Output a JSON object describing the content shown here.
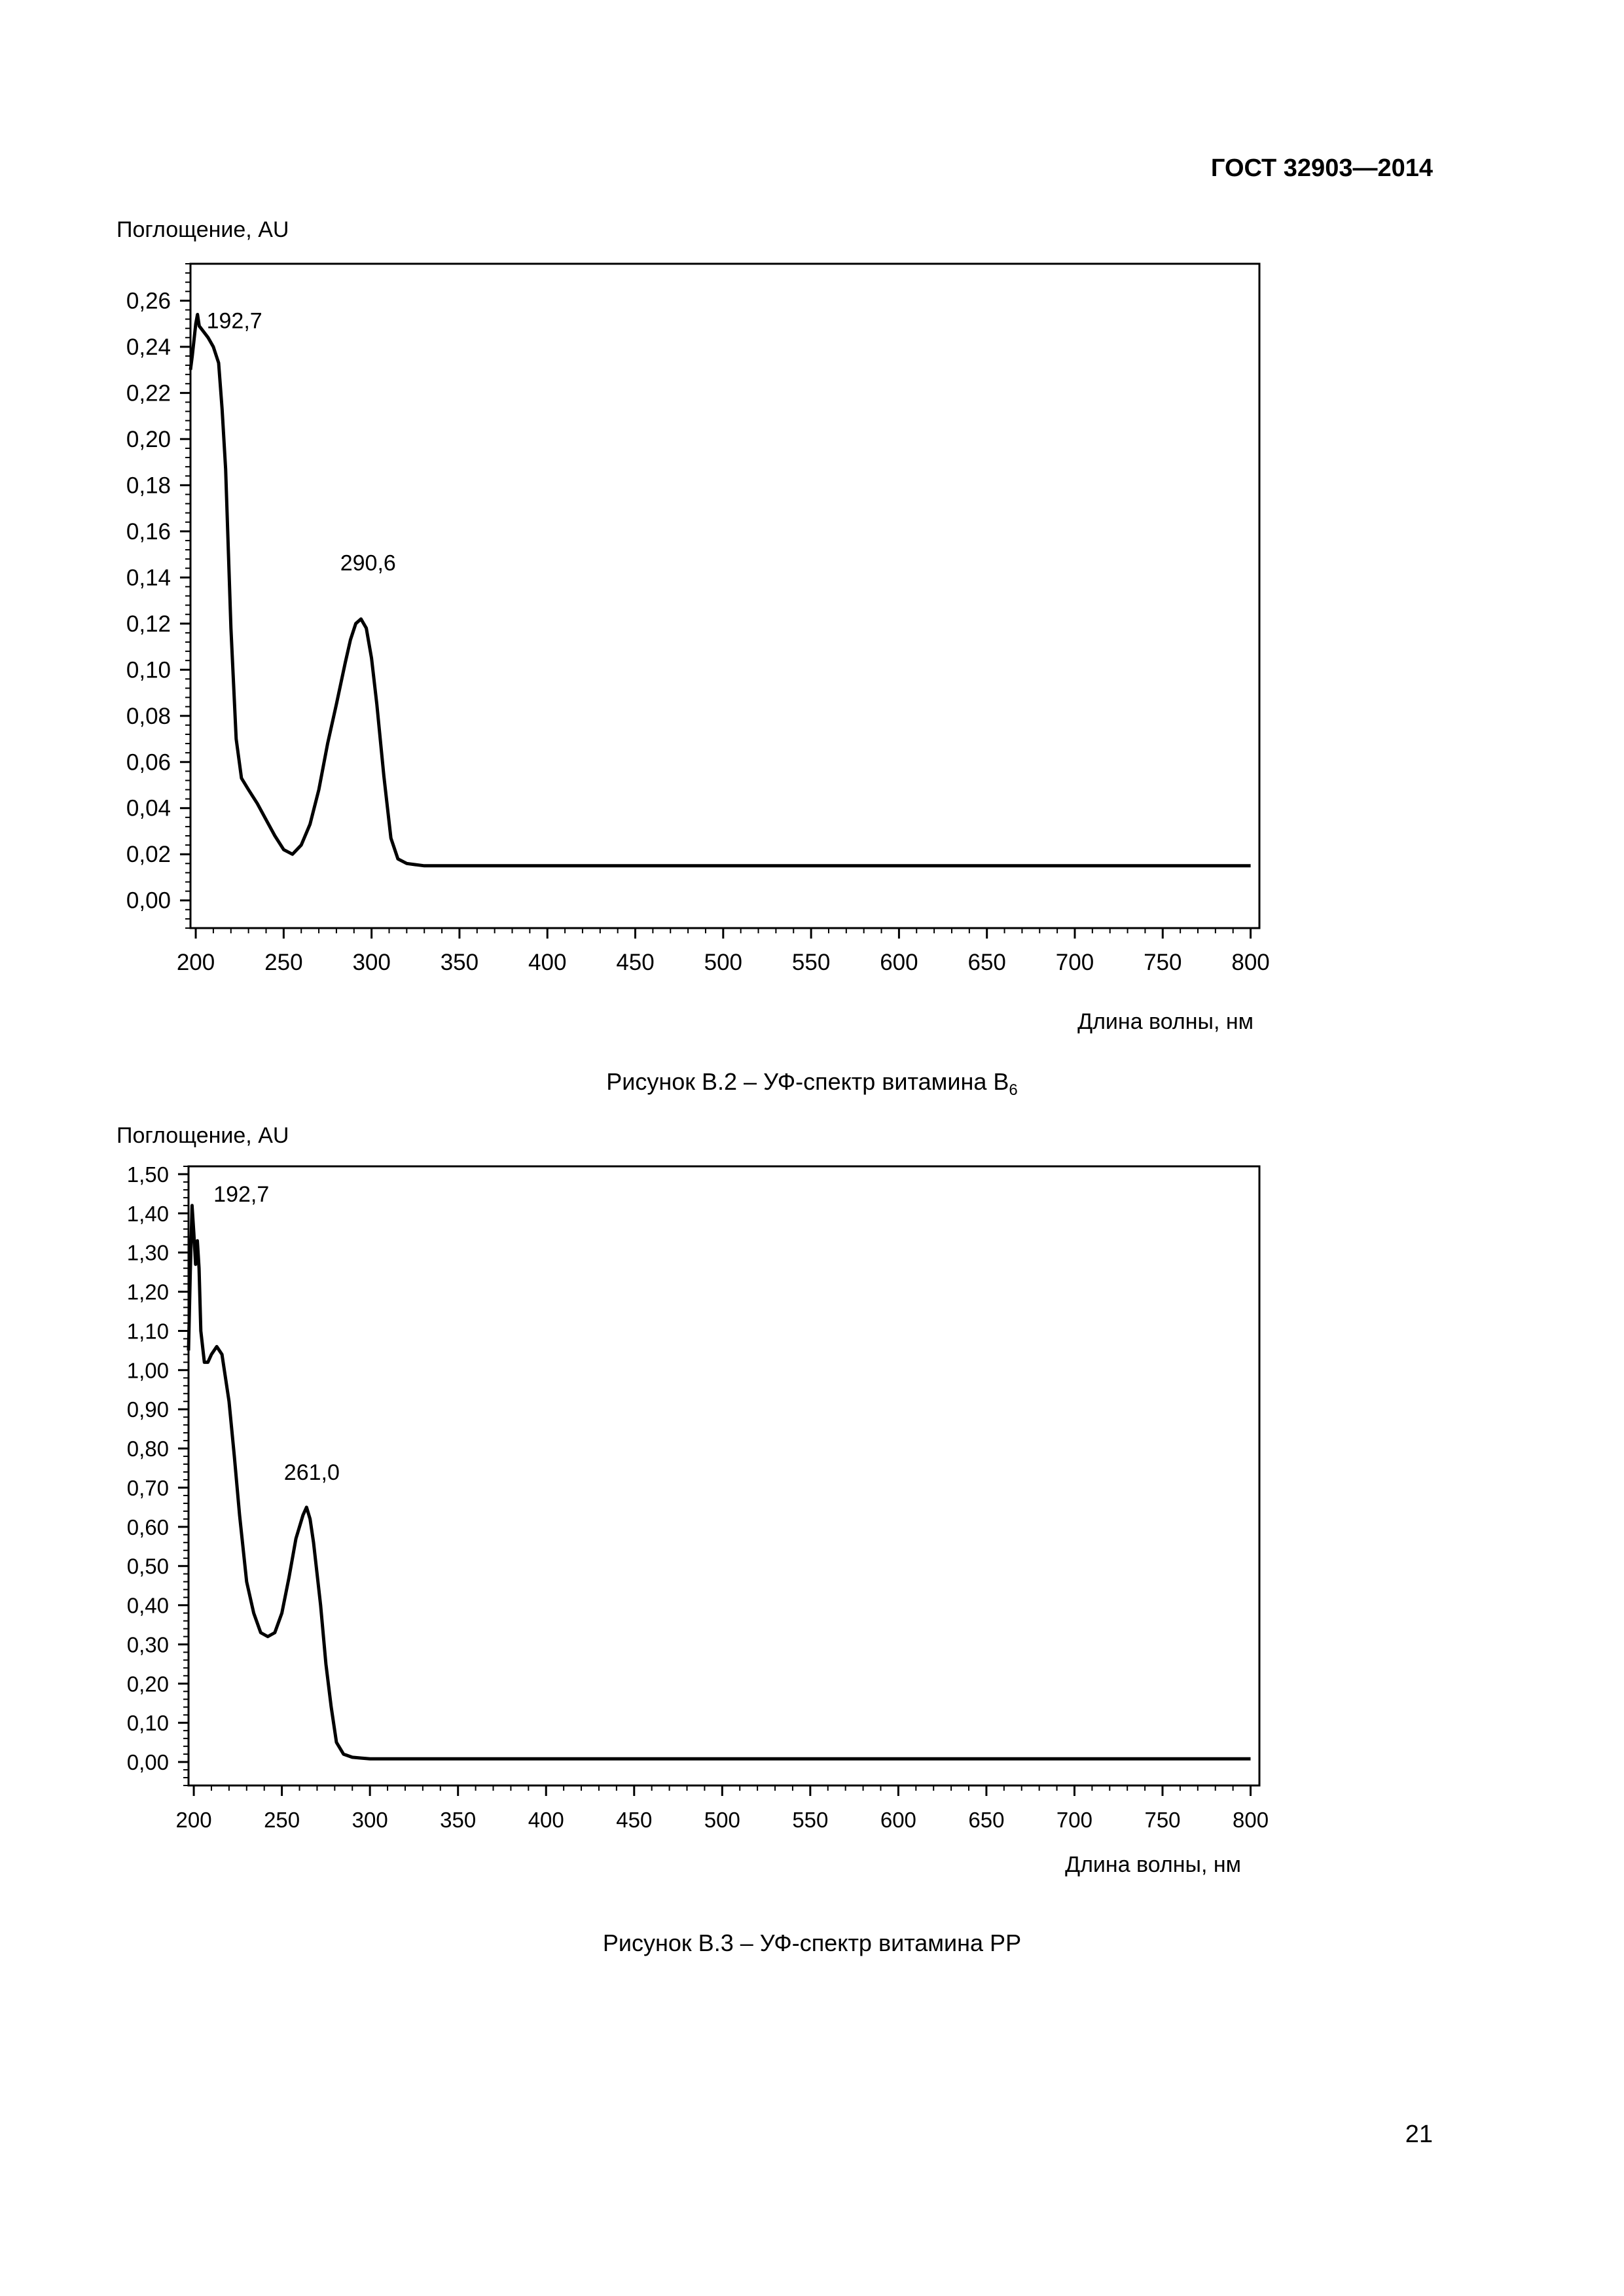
{
  "header": {
    "document_code": "ГОСТ 32903—2014"
  },
  "footer": {
    "page_number": "21"
  },
  "chart_data": [
    {
      "type": "line",
      "ylabel": "Поглощение, AU",
      "xlabel": "Длина волны, нм",
      "xlim": [
        197,
        805
      ],
      "ylim": [
        -0.012,
        0.276
      ],
      "x_ticks": [
        200,
        250,
        300,
        350,
        400,
        450,
        500,
        550,
        600,
        650,
        700,
        750,
        800
      ],
      "x_tick_labels": [
        "200",
        "250",
        "300",
        "350",
        "400",
        "450",
        "500",
        "550",
        "600",
        "650",
        "700",
        "750",
        "800"
      ],
      "y_ticks": [
        0,
        0.02,
        0.04,
        0.06,
        0.08,
        0.1,
        0.12,
        0.14,
        0.16,
        0.18,
        0.2,
        0.22,
        0.24,
        0.26
      ],
      "y_tick_labels": [
        "0,00",
        "0,02",
        "0,04",
        "0,06",
        "0,08",
        "0,10",
        "0,12",
        "0,14",
        "0,16",
        "0,18",
        "0,20",
        "0,22",
        "0,24",
        "0,26"
      ],
      "annotations": [
        {
          "text": "192,7",
          "x": 222,
          "y": 0.248
        },
        {
          "text": "290,6",
          "x": 298,
          "y": 0.143
        }
      ],
      "grid": false,
      "series": [
        {
          "x": [
            197,
            198,
            200,
            201,
            202,
            204,
            207,
            210,
            213,
            215,
            217,
            220,
            223,
            226,
            230,
            235,
            240,
            245,
            250,
            255,
            260,
            265,
            270,
            275,
            280,
            285,
            288,
            291,
            294,
            297,
            300,
            303,
            307,
            311,
            315,
            320,
            325,
            330,
            340,
            350,
            400,
            500,
            600,
            700,
            800
          ],
          "y": [
            0.23,
            0.236,
            0.25,
            0.254,
            0.249,
            0.247,
            0.244,
            0.24,
            0.233,
            0.213,
            0.187,
            0.118,
            0.07,
            0.053,
            0.048,
            0.042,
            0.035,
            0.028,
            0.022,
            0.02,
            0.024,
            0.033,
            0.048,
            0.068,
            0.085,
            0.103,
            0.113,
            0.12,
            0.122,
            0.118,
            0.105,
            0.085,
            0.054,
            0.027,
            0.018,
            0.016,
            0.0155,
            0.015,
            0.015,
            0.015,
            0.015,
            0.015,
            0.015,
            0.015,
            0.015
          ]
        }
      ]
    },
    {
      "type": "line",
      "ylabel": "Поглощение, AU",
      "xlabel": "Длина волны, нм",
      "xlim": [
        197,
        805
      ],
      "ylim": [
        -0.06,
        1.52
      ],
      "x_ticks": [
        200,
        250,
        300,
        350,
        400,
        450,
        500,
        550,
        600,
        650,
        700,
        750,
        800
      ],
      "x_tick_labels": [
        "200",
        "250",
        "300",
        "350",
        "400",
        "450",
        "500",
        "550",
        "600",
        "650",
        "700",
        "750",
        "800"
      ],
      "y_ticks": [
        0,
        0.1,
        0.2,
        0.3,
        0.4,
        0.5,
        0.6,
        0.7,
        0.8,
        0.9,
        1.0,
        1.1,
        1.2,
        1.3,
        1.4,
        1.5
      ],
      "y_tick_labels": [
        "0,00",
        "0,10",
        "0,20",
        "0,30",
        "0,40",
        "0,50",
        "0,60",
        "0,70",
        "0,80",
        "0,90",
        "1,00",
        "1,10",
        "1,20",
        "1,30",
        "1,40",
        "1,50"
      ],
      "annotations": [
        {
          "text": "192,7",
          "x": 227,
          "y": 1.43
        },
        {
          "text": "261,0",
          "x": 267,
          "y": 0.72
        }
      ],
      "grid": false,
      "series": [
        {
          "x": [
            197,
            198,
            199,
            200,
            201,
            202,
            203,
            204,
            206,
            208,
            210,
            213,
            216,
            218,
            220,
            223,
            226,
            230,
            234,
            238,
            242,
            246,
            250,
            254,
            258,
            262,
            264,
            266,
            268,
            270,
            272,
            275,
            278,
            281,
            285,
            290,
            295,
            300,
            350,
            400,
            500,
            600,
            700,
            800
          ],
          "y": [
            1.05,
            1.25,
            1.42,
            1.35,
            1.27,
            1.33,
            1.26,
            1.1,
            1.02,
            1.02,
            1.04,
            1.06,
            1.04,
            0.98,
            0.92,
            0.78,
            0.63,
            0.46,
            0.38,
            0.33,
            0.32,
            0.33,
            0.38,
            0.47,
            0.57,
            0.63,
            0.65,
            0.62,
            0.56,
            0.48,
            0.4,
            0.25,
            0.14,
            0.05,
            0.02,
            0.012,
            0.01,
            0.008,
            0.008,
            0.008,
            0.008,
            0.008,
            0.008,
            0.008
          ]
        }
      ]
    }
  ],
  "figures": [
    {
      "caption_main": "Рисунок В.2 – УФ-спектр витамина В",
      "caption_sub": "6"
    },
    {
      "caption_main": "Рисунок В.3 – УФ-спектр витамина РР",
      "caption_sub": ""
    }
  ]
}
